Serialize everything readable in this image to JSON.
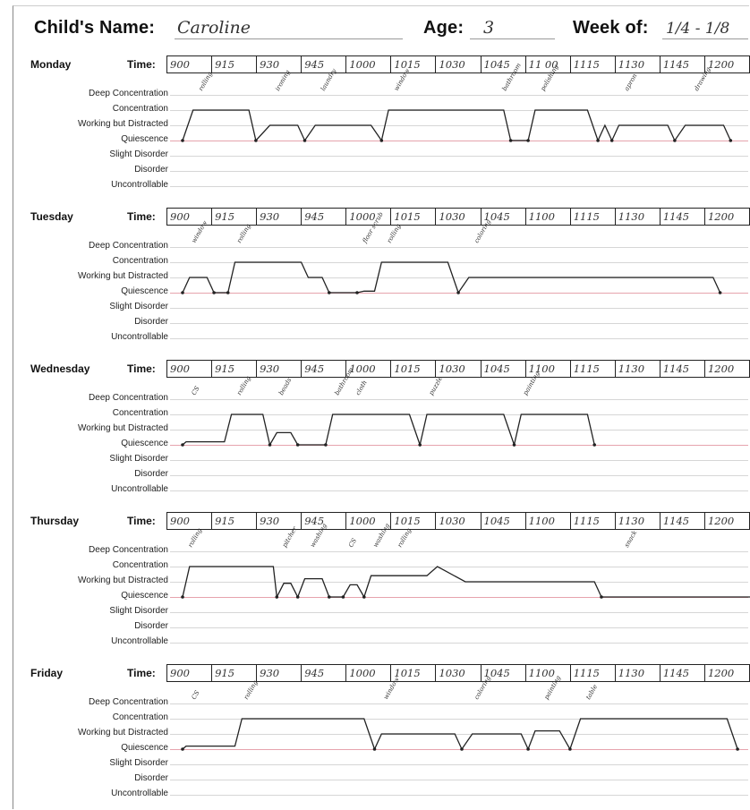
{
  "header": {
    "name_label": "Child's Name:",
    "name_value": "Caroline",
    "age_label": "Age:",
    "age_value": "3",
    "week_label": "Week of:",
    "week_value": "1/4 - 1/8"
  },
  "time_label": "Time:",
  "levels": [
    "Deep Concentration",
    "Concentration",
    "Working but Distracted",
    "Quiescence",
    "Slight Disorder",
    "Disorder",
    "Uncontrollable"
  ],
  "days": [
    {
      "name": "Monday",
      "times": [
        "900",
        "915",
        "930",
        "945",
        "1000",
        "1015",
        "1030",
        "1045",
        "11 00",
        "1115",
        "1130",
        "1145",
        "1200"
      ],
      "trace": [
        [
          0,
          3
        ],
        [
          0.15,
          1
        ],
        [
          0.95,
          1
        ],
        [
          1.05,
          3
        ],
        [
          1.25,
          2
        ],
        [
          1.65,
          2
        ],
        [
          1.75,
          3
        ],
        [
          1.9,
          2
        ],
        [
          2.7,
          2
        ],
        [
          2.85,
          3
        ],
        [
          2.95,
          1
        ],
        [
          4.6,
          1
        ],
        [
          4.7,
          3
        ],
        [
          4.95,
          3
        ],
        [
          5.05,
          1
        ],
        [
          5.8,
          1
        ],
        [
          5.95,
          3
        ],
        [
          6.05,
          2
        ],
        [
          6.15,
          3
        ],
        [
          6.25,
          2
        ],
        [
          6.95,
          2
        ],
        [
          7.05,
          3
        ],
        [
          7.2,
          2
        ],
        [
          7.75,
          2
        ],
        [
          7.85,
          3
        ]
      ],
      "notes": [
        {
          "t": 0.2,
          "text": "rolling"
        },
        {
          "t": 1.3,
          "text": "ironing"
        },
        {
          "t": 1.95,
          "text": "laundry"
        },
        {
          "t": 3.0,
          "text": "window"
        },
        {
          "t": 4.55,
          "text": "bathroom"
        },
        {
          "t": 5.1,
          "text": "polishing"
        },
        {
          "t": 6.3,
          "text": "apron"
        },
        {
          "t": 7.3,
          "text": "drawing"
        }
      ]
    },
    {
      "name": "Tuesday",
      "times": [
        "900",
        "915",
        "930",
        "945",
        "1000",
        "1015",
        "1030",
        "1045",
        "1100",
        "1115",
        "1130",
        "1145",
        "1200"
      ],
      "trace": [
        [
          0,
          3
        ],
        [
          0.1,
          2
        ],
        [
          0.35,
          2
        ],
        [
          0.45,
          3
        ],
        [
          0.65,
          3
        ],
        [
          0.75,
          1
        ],
        [
          1.7,
          1
        ],
        [
          1.8,
          2
        ],
        [
          2.0,
          2
        ],
        [
          2.1,
          3
        ],
        [
          2.5,
          3
        ],
        [
          2.6,
          2.9
        ],
        [
          2.75,
          2.9
        ],
        [
          2.85,
          1
        ],
        [
          3.8,
          1
        ],
        [
          3.95,
          3
        ],
        [
          4.1,
          2
        ],
        [
          7.6,
          2
        ],
        [
          7.7,
          3
        ]
      ],
      "notes": [
        {
          "t": 0.1,
          "text": "window"
        },
        {
          "t": 0.75,
          "text": "rolling"
        },
        {
          "t": 2.55,
          "text": "floor scrub"
        },
        {
          "t": 2.9,
          "text": "rolling"
        },
        {
          "t": 4.15,
          "text": "coloring"
        }
      ]
    },
    {
      "name": "Wednesday",
      "times": [
        "900",
        "915",
        "930",
        "945",
        "1000",
        "1015",
        "1030",
        "1045",
        "1100",
        "1115",
        "1130",
        "1145",
        "1200"
      ],
      "trace": [
        [
          0,
          3
        ],
        [
          0.05,
          2.8
        ],
        [
          0.6,
          2.8
        ],
        [
          0.7,
          1
        ],
        [
          1.15,
          1
        ],
        [
          1.25,
          3
        ],
        [
          1.35,
          2.2
        ],
        [
          1.55,
          2.2
        ],
        [
          1.65,
          3
        ],
        [
          2.05,
          3
        ],
        [
          2.15,
          1
        ],
        [
          3.25,
          1
        ],
        [
          3.4,
          3
        ],
        [
          3.5,
          1
        ],
        [
          4.6,
          1
        ],
        [
          4.75,
          3
        ],
        [
          4.85,
          1
        ],
        [
          5.8,
          1
        ],
        [
          5.9,
          3
        ]
      ],
      "notes": [
        {
          "t": 0.1,
          "text": "CS"
        },
        {
          "t": 0.75,
          "text": "rolling"
        },
        {
          "t": 1.35,
          "text": "beads"
        },
        {
          "t": 2.15,
          "text": "bathroom"
        },
        {
          "t": 2.45,
          "text": "cloth"
        },
        {
          "t": 3.5,
          "text": "puzzle"
        },
        {
          "t": 4.85,
          "text": "painting"
        }
      ]
    },
    {
      "name": "Thursday",
      "times": [
        "900",
        "915",
        "930",
        "945",
        "1000",
        "1015",
        "1030",
        "1045",
        "1100",
        "1115",
        "1130",
        "1145",
        "1200"
      ],
      "trace": [
        [
          0,
          3
        ],
        [
          0.1,
          1
        ],
        [
          1.3,
          1
        ],
        [
          1.35,
          3
        ],
        [
          1.45,
          2.1
        ],
        [
          1.55,
          2.1
        ],
        [
          1.65,
          3
        ],
        [
          1.75,
          1.8
        ],
        [
          2.0,
          1.8
        ],
        [
          2.1,
          3
        ],
        [
          2.3,
          3
        ],
        [
          2.4,
          2.2
        ],
        [
          2.5,
          2.2
        ],
        [
          2.6,
          3
        ],
        [
          2.7,
          1.6
        ],
        [
          3.5,
          1.6
        ],
        [
          3.65,
          1
        ],
        [
          4.05,
          2
        ],
        [
          5.9,
          2
        ],
        [
          6.0,
          3
        ],
        [
          8.2,
          3
        ]
      ],
      "notes": [
        {
          "t": 0.05,
          "text": "rolling"
        },
        {
          "t": 1.4,
          "text": "pitcher"
        },
        {
          "t": 1.8,
          "text": "washing"
        },
        {
          "t": 2.35,
          "text": "CS"
        },
        {
          "t": 2.7,
          "text": "washing"
        },
        {
          "t": 3.05,
          "text": "rolling"
        },
        {
          "t": 6.3,
          "text": "snack"
        }
      ]
    },
    {
      "name": "Friday",
      "times": [
        "900",
        "915",
        "930",
        "945",
        "1000",
        "1015",
        "1030",
        "1045",
        "1100",
        "1115",
        "1130",
        "1145",
        "1200"
      ],
      "trace": [
        [
          0,
          3
        ],
        [
          0.05,
          2.8
        ],
        [
          0.75,
          2.8
        ],
        [
          0.85,
          1
        ],
        [
          2.6,
          1
        ],
        [
          2.75,
          3
        ],
        [
          2.85,
          2
        ],
        [
          3.9,
          2
        ],
        [
          4.0,
          3
        ],
        [
          4.15,
          2
        ],
        [
          4.85,
          2
        ],
        [
          4.95,
          3
        ],
        [
          5.05,
          1.8
        ],
        [
          5.4,
          1.8
        ],
        [
          5.55,
          3
        ],
        [
          5.7,
          1
        ],
        [
          7.8,
          1
        ],
        [
          7.95,
          3
        ]
      ],
      "notes": [
        {
          "t": 0.1,
          "text": "CS"
        },
        {
          "t": 0.85,
          "text": "rolling"
        },
        {
          "t": 2.85,
          "text": "window"
        },
        {
          "t": 4.15,
          "text": "coloring"
        },
        {
          "t": 5.15,
          "text": "painting"
        },
        {
          "t": 5.75,
          "text": "table"
        }
      ]
    }
  ]
}
